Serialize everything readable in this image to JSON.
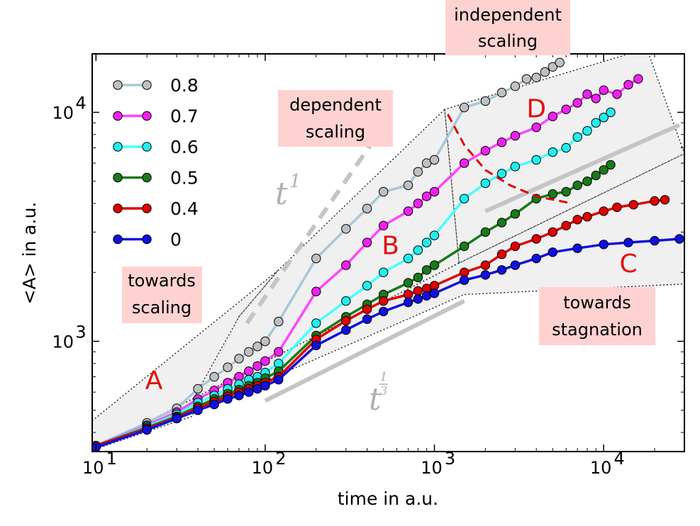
{
  "chart_data": {
    "type": "line",
    "xscale": "log",
    "yscale": "log",
    "xlabel": "time in a.u.",
    "ylabel": "<A> in a.u.",
    "xlim": [
      9.5,
      30000
    ],
    "ylim": [
      330,
      18000
    ],
    "x_ticks": [
      {
        "value": 10,
        "base": "10",
        "exp": "1"
      },
      {
        "value": 100,
        "base": "10",
        "exp": "2"
      },
      {
        "value": 1000,
        "base": "10",
        "exp": "3"
      },
      {
        "value": 10000,
        "base": "10",
        "exp": "4"
      }
    ],
    "y_ticks": [
      {
        "value": 1000,
        "base": "10",
        "exp": "3"
      },
      {
        "value": 10000,
        "base": "10",
        "exp": "4"
      }
    ],
    "legend_position": "upper-left",
    "series": [
      {
        "name": "0.8",
        "color": "#a8c8d8",
        "marker_fill": "#c0c0c0",
        "x": [
          10,
          20,
          30,
          40,
          50,
          60,
          70,
          80,
          90,
          100,
          120,
          200,
          300,
          400,
          500,
          700,
          800,
          900,
          1000,
          1500,
          2000,
          2500,
          3000,
          3500,
          4000,
          4500,
          5000,
          5500
        ],
        "y": [
          350,
          440,
          510,
          620,
          700,
          770,
          840,
          900,
          950,
          1000,
          1220,
          2300,
          3100,
          3800,
          4500,
          4800,
          5500,
          6000,
          6200,
          10500,
          11200,
          12200,
          13000,
          14000,
          14200,
          15000,
          15800,
          16500
        ]
      },
      {
        "name": "0.7",
        "color": "#ff44ff",
        "marker_fill": "#ee22ee",
        "x": [
          10,
          20,
          30,
          40,
          50,
          60,
          70,
          80,
          90,
          100,
          120,
          200,
          300,
          400,
          500,
          700,
          800,
          900,
          1000,
          1500,
          2000,
          2500,
          3000,
          4000,
          5000,
          6000,
          7000,
          8000,
          9000,
          10000,
          12000,
          14000,
          16000
        ],
        "y": [
          350,
          430,
          490,
          560,
          610,
          660,
          700,
          740,
          780,
          820,
          900,
          1650,
          2150,
          2700,
          3200,
          3700,
          4000,
          4300,
          4500,
          6000,
          6800,
          7400,
          7900,
          8600,
          9600,
          10300,
          11000,
          12000,
          11500,
          12500,
          12000,
          13200,
          14000
        ]
      },
      {
        "name": "0.6",
        "color": "#44ffff",
        "marker_fill": "#22eeee",
        "x": [
          10,
          20,
          30,
          40,
          50,
          60,
          70,
          80,
          90,
          100,
          120,
          200,
          300,
          400,
          500,
          700,
          800,
          900,
          1000,
          1500,
          2000,
          2500,
          3000,
          4000,
          5000,
          6000,
          7000,
          8000,
          9000,
          10000,
          11000
        ],
        "y": [
          350,
          425,
          480,
          540,
          580,
          620,
          650,
          680,
          700,
          730,
          800,
          1200,
          1500,
          1750,
          2000,
          2300,
          2500,
          2700,
          2900,
          4200,
          4900,
          5400,
          5800,
          6200,
          6700,
          7000,
          7800,
          8300,
          9000,
          9500,
          10000
        ]
      },
      {
        "name": "0.5",
        "color": "#1a7a1a",
        "marker_fill": "#1a7a1a",
        "x": [
          10,
          20,
          30,
          40,
          50,
          60,
          70,
          80,
          90,
          100,
          120,
          200,
          300,
          400,
          500,
          700,
          800,
          900,
          1000,
          1500,
          2000,
          2500,
          3000,
          4000,
          5000,
          6000,
          7000,
          8000,
          9000,
          10000,
          11000
        ],
        "y": [
          350,
          420,
          470,
          520,
          560,
          590,
          615,
          640,
          660,
          690,
          740,
          1060,
          1280,
          1450,
          1600,
          1800,
          1900,
          2050,
          2150,
          2600,
          3000,
          3300,
          3600,
          4200,
          4400,
          4500,
          4800,
          5000,
          5300,
          5600,
          5900
        ]
      },
      {
        "name": "0.4",
        "color": "#e00000",
        "marker_fill": "#e00000",
        "x": [
          10,
          20,
          30,
          40,
          50,
          60,
          70,
          80,
          90,
          100,
          120,
          200,
          300,
          400,
          500,
          700,
          800,
          900,
          1000,
          1500,
          2000,
          2500,
          3000,
          4000,
          5000,
          6000,
          7000,
          8000,
          10000,
          12000,
          15000,
          20000,
          23000
        ],
        "y": [
          350,
          415,
          465,
          510,
          545,
          575,
          600,
          620,
          640,
          660,
          700,
          1020,
          1230,
          1380,
          1500,
          1600,
          1660,
          1700,
          1750,
          2000,
          2150,
          2400,
          2600,
          2800,
          3000,
          3200,
          3400,
          3500,
          3700,
          3850,
          3950,
          4100,
          4150
        ]
      },
      {
        "name": "0",
        "color": "#1010e0",
        "marker_fill": "#1010e0",
        "x": [
          10,
          20,
          30,
          40,
          50,
          60,
          70,
          80,
          90,
          100,
          120,
          200,
          300,
          400,
          500,
          700,
          800,
          900,
          1000,
          1500,
          2000,
          2500,
          3000,
          4000,
          5000,
          7000,
          10000,
          14000,
          20000,
          28000
        ],
        "y": [
          345,
          410,
          460,
          500,
          530,
          560,
          580,
          600,
          620,
          640,
          680,
          960,
          1120,
          1250,
          1350,
          1480,
          1530,
          1580,
          1620,
          1850,
          1950,
          2050,
          2150,
          2300,
          2450,
          2550,
          2650,
          2700,
          2750,
          2800
        ]
      }
    ],
    "regions": {
      "A": {
        "label": "A",
        "polygon": [
          [
            9.5,
            450
          ],
          [
            120,
            2050
          ],
          [
            70,
            1280
          ],
          [
            37,
            470
          ],
          [
            9.5,
            335
          ]
        ],
        "label_at": [
          22,
          620
        ]
      },
      "B": {
        "label": "B",
        "polygon": [
          [
            70,
            1280
          ],
          [
            120,
            2050
          ],
          [
            1150,
            10300
          ],
          [
            1400,
            2200
          ],
          [
            33,
            470
          ]
        ],
        "label_at": [
          550,
          2400
        ]
      },
      "C": {
        "label": "C",
        "polygon": [
          [
            1400,
            2200
          ],
          [
            30000,
            6600
          ],
          [
            30000,
            1780
          ],
          [
            1500,
            1600
          ],
          [
            33,
            470
          ],
          [
            9.5,
            335
          ]
        ],
        "label_at": [
          14000,
          2000
        ]
      },
      "D": {
        "label": "D",
        "polygon": [
          [
            1150,
            10300
          ],
          [
            1400,
            2200
          ],
          [
            30000,
            6600
          ],
          [
            18000,
            19000
          ],
          [
            1150,
            10300
          ]
        ],
        "label_at": [
          4000,
          9500
        ]
      }
    },
    "guide_lines": [
      {
        "name": "t^1",
        "style": "dashed",
        "x": [
          78,
          430
        ],
        "y": [
          1200,
          7400
        ]
      },
      {
        "name": "t^(1/3)",
        "style": "solid",
        "x": [
          100,
          1500
        ],
        "y": [
          550,
          1500
        ]
      },
      {
        "name": "upper-guide",
        "style": "solid",
        "x": [
          2000,
          28000
        ],
        "y": [
          3700,
          8800
        ]
      }
    ],
    "boundary_curve": {
      "x": [
        1200,
        1500,
        2000,
        2800,
        4000,
        6500
      ],
      "y": [
        9800,
        7200,
        5600,
        4800,
        4300,
        4000
      ]
    },
    "annotations": {
      "towards_scaling": [
        "towards",
        "scaling"
      ],
      "dependent_scaling": [
        "dependent",
        "scaling"
      ],
      "independent_scaling": [
        "independent",
        "scaling"
      ],
      "towards_stagnation": [
        "towards",
        "stagnation"
      ],
      "t1": {
        "base": "t",
        "exp": "1"
      },
      "t13": {
        "base": "t",
        "num": "1",
        "den": "3"
      }
    }
  }
}
